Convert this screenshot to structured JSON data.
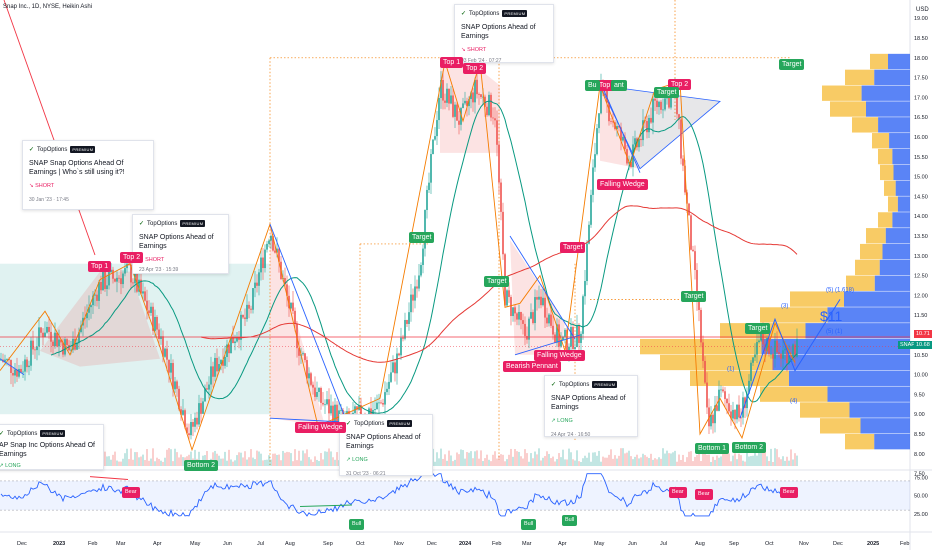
{
  "header": {
    "symbol_info": "Snap Inc., 1D, NYSE, Heikin Ashi",
    "currency": "USD"
  },
  "price_axis": {
    "ticks": [
      "19.00",
      "18.50",
      "18.00",
      "17.50",
      "17.00",
      "16.50",
      "16.00",
      "15.50",
      "15.00",
      "14.50",
      "14.00",
      "13.50",
      "13.00",
      "12.50",
      "12.00",
      "11.50",
      "11.00",
      "10.50",
      "10.00",
      "9.50",
      "9.00",
      "8.50",
      "8.00",
      "7.50"
    ],
    "last_price": "10.71",
    "symbol_tag": "SNAP",
    "symbol_price": "10.68"
  },
  "rsi_axis": {
    "ticks": [
      "75.00",
      "50.00",
      "25.00"
    ]
  },
  "time_axis": {
    "ticks": [
      "Dec",
      "2023",
      "Feb",
      "Mar",
      "Apr",
      "May",
      "Jun",
      "Jul",
      "Aug",
      "Sep",
      "Oct",
      "Nov",
      "Dec",
      "2024",
      "Feb",
      "Mar",
      "Apr",
      "May",
      "Jun",
      "Jul",
      "Aug",
      "Sep",
      "Oct",
      "Nov",
      "Dec",
      "2025",
      "Feb"
    ]
  },
  "pattern_labels": [
    {
      "text": "Top 1",
      "color": "red"
    },
    {
      "text": "Top 2",
      "color": "red"
    },
    {
      "text": "Top 1",
      "color": "red"
    },
    {
      "text": "Top 2",
      "color": "red"
    },
    {
      "text": "Top 1",
      "color": "red"
    },
    {
      "text": "Top 2",
      "color": "red"
    },
    {
      "text": "Bottom 2",
      "color": "green"
    },
    {
      "text": "Bottom 1",
      "color": "green"
    },
    {
      "text": "Bottom 2",
      "color": "green"
    },
    {
      "text": "Target",
      "color": "green"
    },
    {
      "text": "Target",
      "color": "green"
    },
    {
      "text": "Target",
      "color": "green"
    },
    {
      "text": "Target",
      "color": "green"
    },
    {
      "text": "Target",
      "color": "green"
    },
    {
      "text": "Target",
      "color": "green"
    },
    {
      "text": "Target",
      "color": "red"
    },
    {
      "text": "Falling Wedge",
      "color": "red"
    },
    {
      "text": "Falling Wedge",
      "color": "red"
    },
    {
      "text": "Falling Wedge",
      "color": "red"
    },
    {
      "text": "Bearish Pennant",
      "color": "red"
    },
    {
      "text": "Bu",
      "color": "green"
    },
    {
      "text": "ant",
      "color": "green"
    }
  ],
  "rsi_labels": [
    {
      "text": "Bear",
      "color": "red"
    },
    {
      "text": "Bull",
      "color": "green"
    },
    {
      "text": "Bull",
      "color": "green"
    },
    {
      "text": "Bull",
      "color": "green"
    },
    {
      "text": "Bear",
      "color": "red"
    },
    {
      "text": "Bear",
      "color": "red"
    },
    {
      "text": "Bear",
      "color": "red"
    }
  ],
  "elliott_labels": {
    "w1": "(1)",
    "w3": "(3)",
    "w4": "(4)",
    "w5": "(5) (1.618)",
    "w5b": "(5) (1)",
    "target_price": "$11"
  },
  "ideas": [
    {
      "author": "TopOptions",
      "badge": "PREMIUM",
      "title": "SNAP Snap Options Ahead Of Earnings | Who`s still using it?!",
      "side": "SHORT",
      "time": "30 Jan '23 · 17:45"
    },
    {
      "author": "TopOptions",
      "badge": "PREMIUM",
      "title": "SNAP  Options Ahead of Earnings",
      "side": "SHORT",
      "time": "23 Apr '23 · 15:39"
    },
    {
      "author": "TopOptions",
      "badge": "PREMIUM",
      "title": "SNAP  Options Ahead of Earnings",
      "side": "SHORT",
      "time": "03 Feb '24 · 07:27"
    },
    {
      "author": "TopOptions",
      "badge": "PREMIUM",
      "title": "SNAP Options Ahead of Earnings",
      "side": "LONG",
      "time": "24 Apr '24 · 16:50"
    },
    {
      "author": "TopOptions",
      "badge": "PREMIUM",
      "title": "SNAP Options Ahead of Earnings",
      "side": "LONG",
      "time": "31 Oct '23 · 06:21"
    },
    {
      "author": "TopOptions",
      "badge": "PREMIUM",
      "title": "AP Snap Inc Options Ahead Of Earnings",
      "side": "LONG",
      "time": ""
    }
  ],
  "colors": {
    "up": "#26a69a",
    "down": "#ef5350",
    "rsi_line": "#2962ff",
    "ma_green": "#089981",
    "ma_red": "#e53935",
    "volume_profile_yellow": "#f7c24a",
    "volume_profile_blue": "#3d6ef5",
    "pattern_orange": "#f57c00"
  }
}
